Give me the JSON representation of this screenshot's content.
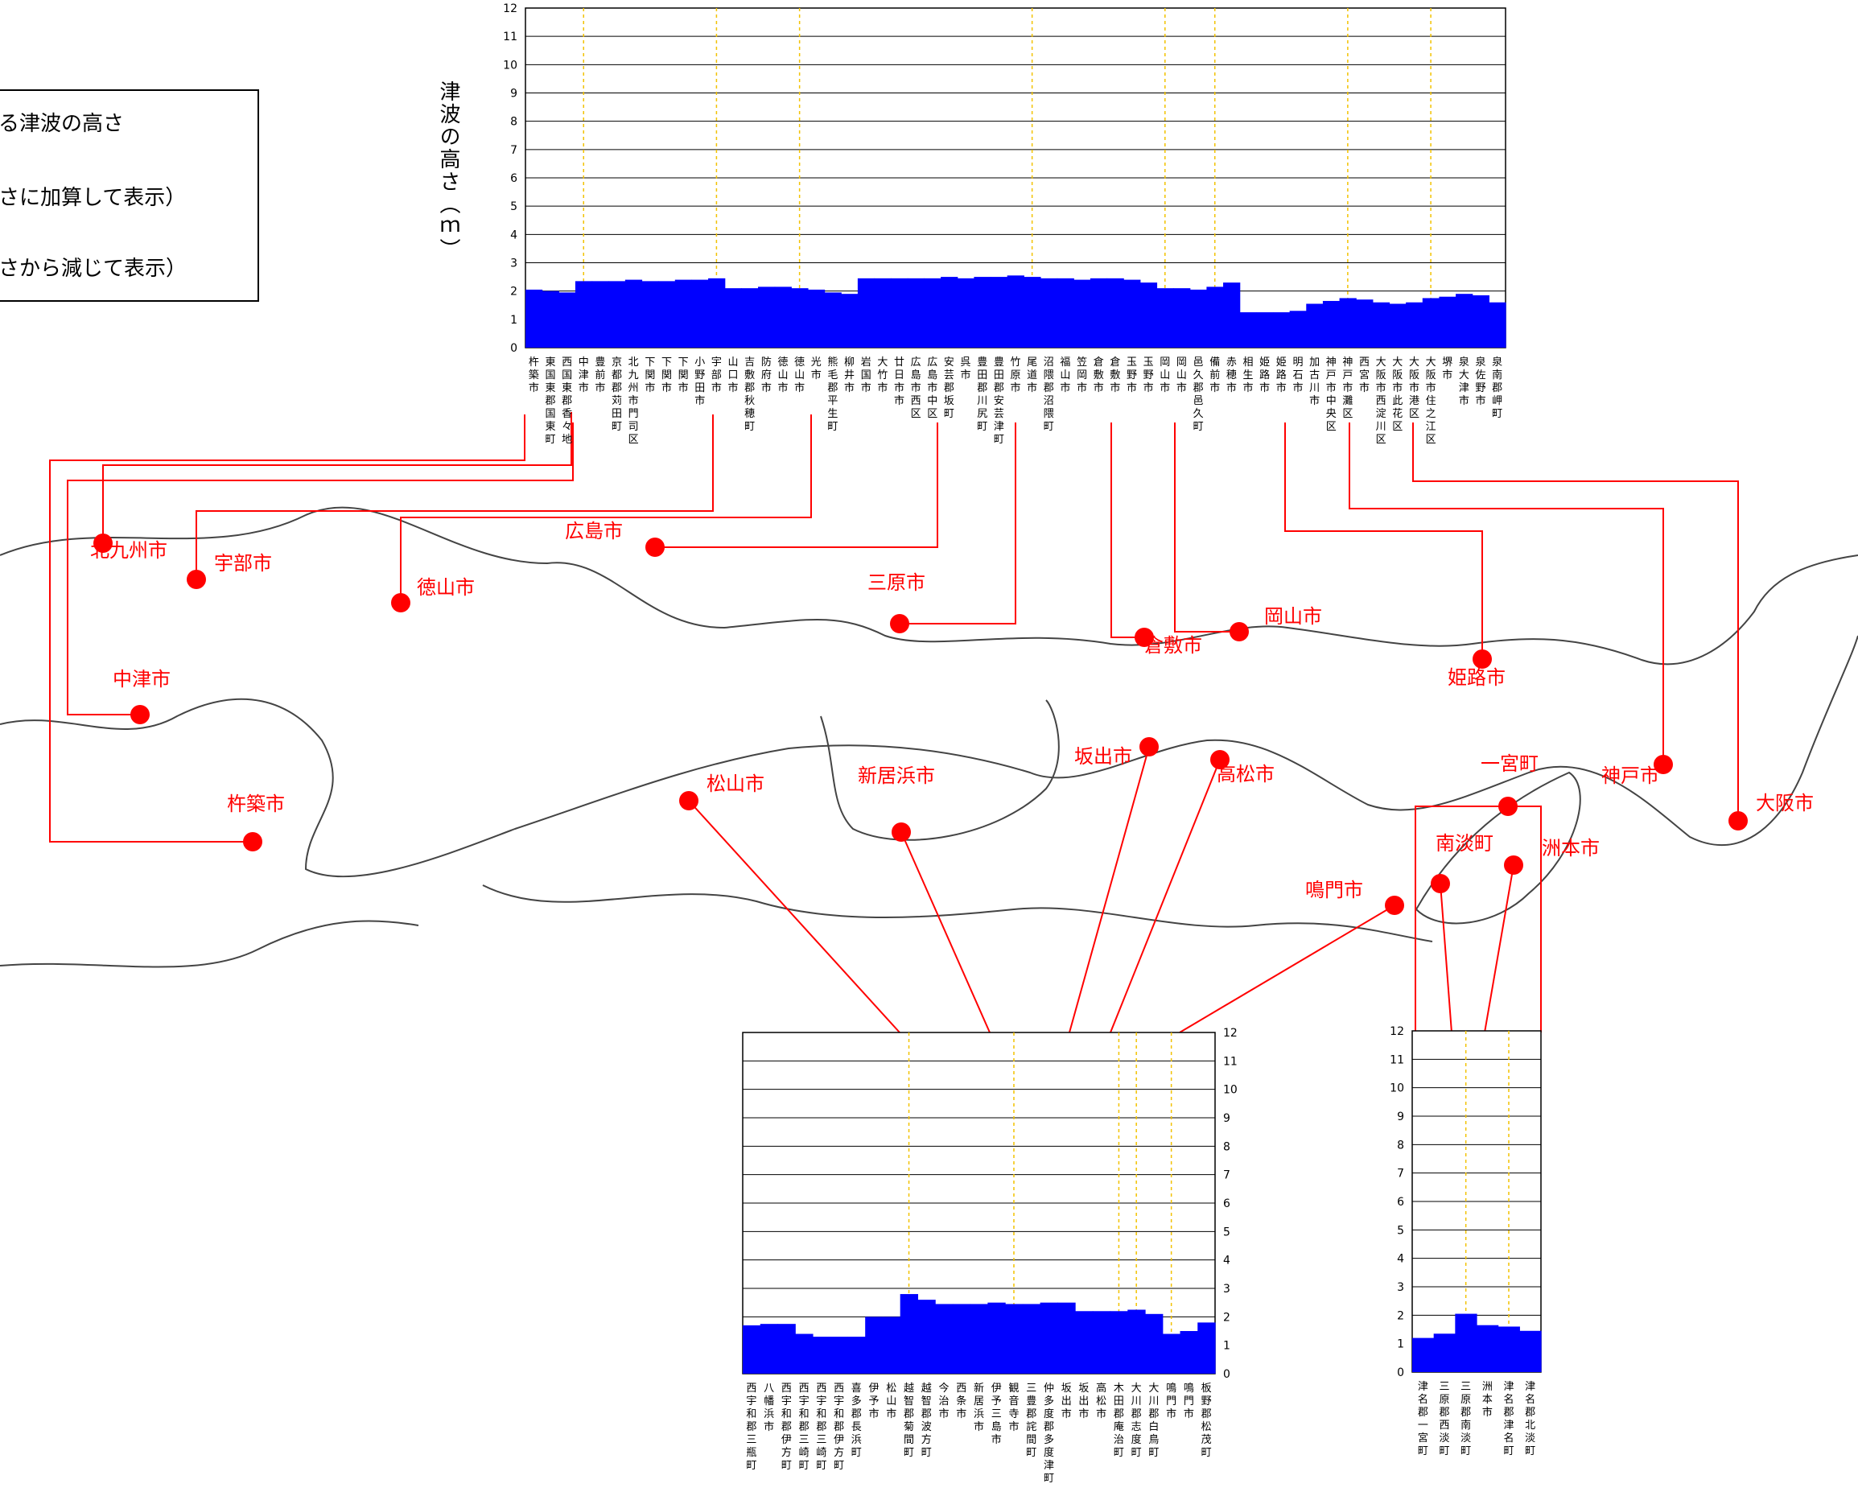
{
  "legend": {
    "line1": "る津波の高さ",
    "line2": "さに加算して表示）",
    "line3": "さから減じて表示）"
  },
  "colors": {
    "fill": "#0000ff",
    "lead": "#ff0000",
    "grid": "#000000",
    "dashed": "#f2c200"
  },
  "chart_data": [
    {
      "type": "area",
      "name": "top",
      "ylabel": "津波の高さ（ｍ）",
      "ylim": [
        0,
        12
      ],
      "yticks": [
        0,
        1,
        2,
        3,
        4,
        5,
        6,
        7,
        8,
        9,
        10,
        11,
        12
      ],
      "categories": [
        "杵築市",
        "東国東郡国東町",
        "西国東郡香々地",
        "中津市",
        "豊前市",
        "京都郡苅田町",
        "北九州市門司区",
        "下関市",
        "下関市",
        "下関市",
        "小野田市",
        "宇部市",
        "山口市",
        "吉敷郡秋穂町",
        "防府市",
        "徳山市",
        "徳山市",
        "光市",
        "熊毛郡平生町",
        "柳井市",
        "岩国市",
        "大竹市",
        "廿日市市",
        "広島市西区",
        "広島市中区",
        "安芸郡坂町",
        "呉市",
        "豊田郡川尻町",
        "豊田郡安芸津町",
        "竹原市",
        "尾道市",
        "沼隈郡沼隈町",
        "福山市",
        "笠岡市",
        "倉敷市",
        "倉敷市",
        "玉野市",
        "玉野市",
        "岡山市",
        "岡山市",
        "邑久郡邑久町",
        "備前市",
        "赤穂市",
        "相生市",
        "姫路市",
        "姫路市",
        "明石市",
        "加古川市",
        "神戸市中央区",
        "神戸市灘区",
        "西宮市",
        "大阪市西淀川区",
        "大阪市此花区",
        "大阪市港区",
        "大阪市住之江区",
        "堺市",
        "泉大津市",
        "泉佐野市",
        "泉南郡岬町"
      ],
      "values": [
        2.05,
        2.0,
        1.95,
        2.35,
        2.35,
        2.35,
        2.4,
        2.35,
        2.35,
        2.4,
        2.4,
        2.45,
        2.1,
        2.1,
        2.15,
        2.15,
        2.1,
        2.05,
        1.95,
        1.9,
        2.45,
        2.45,
        2.45,
        2.45,
        2.45,
        2.5,
        2.45,
        2.5,
        2.5,
        2.55,
        2.5,
        2.45,
        2.45,
        2.4,
        2.45,
        2.45,
        2.4,
        2.3,
        2.1,
        2.1,
        2.05,
        2.15,
        2.3,
        1.25,
        1.25,
        1.25,
        1.3,
        1.55,
        1.65,
        1.75,
        1.7,
        1.6,
        1.55,
        1.6,
        1.75,
        1.8,
        1.9,
        1.85,
        1.6
      ]
    },
    {
      "type": "area",
      "name": "shikoku",
      "ylim": [
        0,
        12
      ],
      "yticks": [
        0,
        1,
        2,
        3,
        4,
        5,
        6,
        7,
        8,
        9,
        10,
        11,
        12
      ],
      "categories": [
        "西宇和郡三瓶町",
        "八幡浜市",
        "西宇和郡伊方町",
        "西宇和郡三崎町",
        "西宇和郡三崎町",
        "西宇和郡伊方町",
        "喜多郡長浜町",
        "伊予市",
        "松山市",
        "越智郡菊間町",
        "越智郡波方町",
        "今治市",
        "西条市",
        "新居浜市",
        "伊予三島市",
        "観音寺市",
        "三豊郡詫間町",
        "仲多度郡多度津町",
        "坂出市",
        "坂出市",
        "高松市",
        "木田郡庵治町",
        "大川郡志度町",
        "大川郡白鳥町",
        "鳴門市",
        "鳴門市",
        "板野郡松茂町"
      ],
      "values": [
        1.7,
        1.75,
        1.75,
        1.4,
        1.3,
        1.3,
        1.3,
        2.0,
        2.0,
        2.8,
        2.6,
        2.45,
        2.45,
        2.45,
        2.5,
        2.45,
        2.45,
        2.5,
        2.5,
        2.2,
        2.2,
        2.2,
        2.25,
        2.1,
        1.4,
        1.5,
        1.8
      ]
    },
    {
      "type": "area",
      "name": "awaji",
      "ylim": [
        0,
        12
      ],
      "yticks": [
        0,
        1,
        2,
        3,
        4,
        5,
        6,
        7,
        8,
        9,
        10,
        11,
        12
      ],
      "categories": [
        "津名郡一宮町",
        "三原郡西淡町",
        "三原郡南淡町",
        "洲本市",
        "津名郡津名町",
        "津名郡北淡町"
      ],
      "values": [
        1.2,
        1.35,
        2.05,
        1.65,
        1.6,
        1.45
      ]
    }
  ],
  "map": {
    "labels": [
      "北九州市",
      "宇部市",
      "徳山市",
      "広島市",
      "三原市",
      "倉敷市",
      "岡山市",
      "姫路市",
      "中津市",
      "杵築市",
      "松山市",
      "新居浜市",
      "坂出市",
      "高松市",
      "一宮町",
      "神戸市",
      "大阪市",
      "南淡町",
      "洲本市",
      "鳴門市"
    ]
  }
}
